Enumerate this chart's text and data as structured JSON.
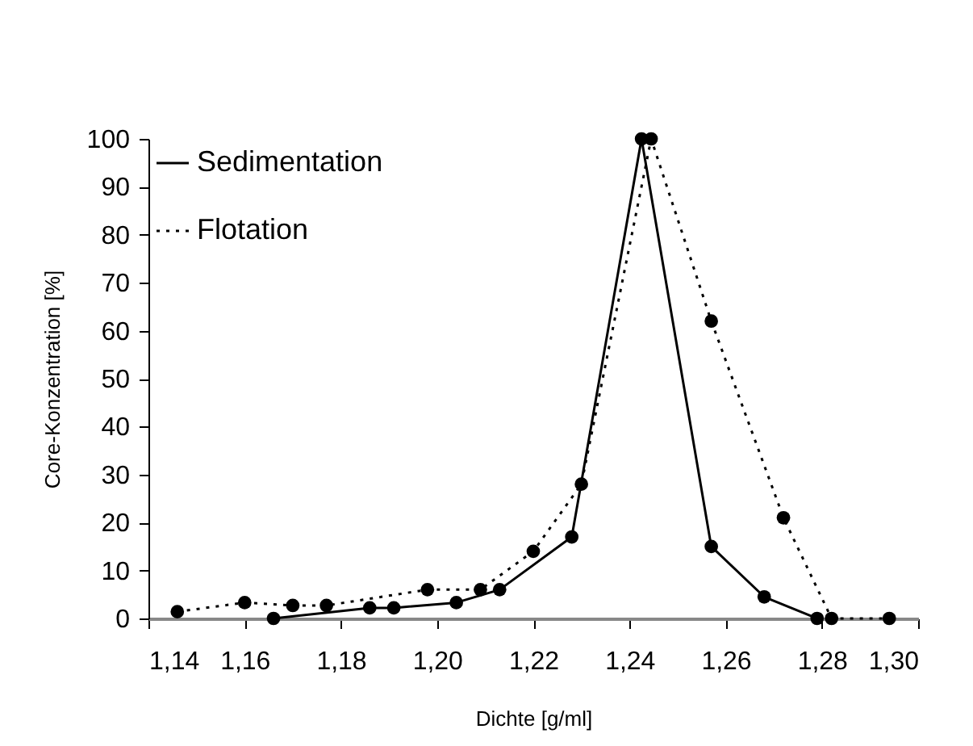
{
  "chart_data": {
    "type": "line",
    "xlabel": "Dichte [g/ml]",
    "ylabel": "Core-Konzentration [%]",
    "xlim": [
      1.14,
      1.3
    ],
    "xticks": [
      {
        "value": 1.14,
        "label": "1,14"
      },
      {
        "value": 1.16,
        "label": "1,16"
      },
      {
        "value": 1.18,
        "label": "1,18"
      },
      {
        "value": 1.2,
        "label": "1,20"
      },
      {
        "value": 1.22,
        "label": "1,22"
      },
      {
        "value": 1.24,
        "label": "1,24"
      },
      {
        "value": 1.26,
        "label": "1,26"
      },
      {
        "value": 1.28,
        "label": "1,28"
      },
      {
        "value": 1.3,
        "label": "1,30"
      }
    ],
    "ylim": [
      0,
      100
    ],
    "yticks": [
      0,
      10,
      20,
      30,
      40,
      50,
      60,
      70,
      80,
      90,
      100
    ],
    "grid": false,
    "legend": "top left",
    "marker": "circle",
    "series": [
      {
        "name": "Sedimentation",
        "color": "#000000",
        "line_style": "solid",
        "x": [
          1.166,
          1.186,
          1.191,
          1.204,
          1.213,
          1.228,
          1.2425,
          1.257,
          1.268,
          1.279
        ],
        "values": [
          0,
          2.2,
          2.2,
          3.3,
          6,
          17,
          100,
          15,
          4.5,
          0
        ]
      },
      {
        "name": "Flotation",
        "color": "#000000",
        "line_style": "dotted",
        "x": [
          1.146,
          1.16,
          1.17,
          1.177,
          1.198,
          1.209,
          1.22,
          1.23,
          1.2445,
          1.257,
          1.272,
          1.282,
          1.294
        ],
        "values": [
          1.4,
          3.3,
          2.7,
          2.7,
          6,
          6,
          14,
          28,
          100,
          62,
          21,
          0,
          0
        ]
      }
    ]
  }
}
